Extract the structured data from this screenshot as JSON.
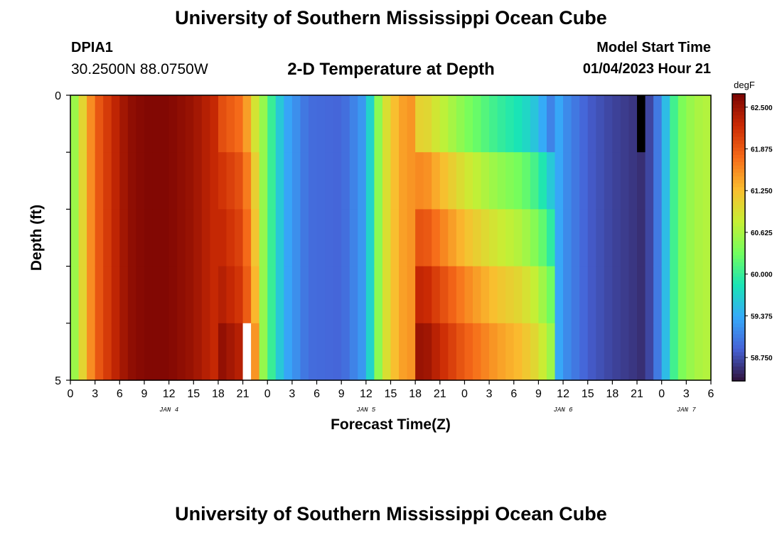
{
  "header": {
    "title": "University of Southern Mississippi Ocean Cube",
    "station_id": "DPIA1",
    "station_coords": "30.2500N  88.0750W",
    "chart_title": "2-D Temperature at Depth",
    "model_start_label": "Model Start Time",
    "model_start_value": "01/04/2023 Hour 21"
  },
  "footer": {
    "title": "University of Southern Mississippi Ocean Cube"
  },
  "chart_data": {
    "type": "heatmap",
    "xlabel": "Forecast Time(Z)",
    "ylabel": "Depth (ft)",
    "ylim": [
      0,
      5
    ],
    "y_tick_labels": [
      "0",
      "5"
    ],
    "x_tick_labels": [
      "0",
      "3",
      "6",
      "9",
      "12",
      "15",
      "18",
      "21",
      "0",
      "3",
      "6",
      "9",
      "12",
      "15",
      "18",
      "21",
      "0",
      "3",
      "6",
      "9",
      "12",
      "15",
      "18",
      "21",
      "0",
      "3",
      "6"
    ],
    "date_labels": [
      {
        "label": "JAN 4",
        "hour_index": 12
      },
      {
        "label": "JAN 5",
        "hour_index": 36
      },
      {
        "label": "JAN 6",
        "hour_index": 60
      },
      {
        "label": "JAN 7",
        "hour_index": 75
      }
    ],
    "colorbar": {
      "unit": "degF",
      "min": 58.4,
      "max": 62.7,
      "ticks": [
        "62.500",
        "61.875",
        "61.250",
        "60.625",
        "60.000",
        "59.375",
        "58.750"
      ],
      "tick_values": [
        62.5,
        61.875,
        61.25,
        60.625,
        60.0,
        59.375,
        58.75
      ],
      "colors": [
        "#30123b",
        "#4662d7",
        "#36aaf9",
        "#1ae4b6",
        "#72fe5e",
        "#c7ef34",
        "#fabd2f",
        "#f66b19",
        "#ca2a04",
        "#7a0403"
      ]
    },
    "x_hours": 78,
    "depth_rows": 5,
    "time_keyframes": [
      {
        "h": 0,
        "t": 60.3
      },
      {
        "h": 1,
        "t": 60.8
      },
      {
        "h": 2,
        "t": 61.3
      },
      {
        "h": 3,
        "t": 61.8
      },
      {
        "h": 5,
        "t": 62.2
      },
      {
        "h": 7,
        "t": 62.55
      },
      {
        "h": 9,
        "t": 62.65
      },
      {
        "h": 12,
        "t": 62.65
      },
      {
        "h": 15,
        "t": 62.5
      },
      {
        "h": 18,
        "t": 62.2
      },
      {
        "h": 21,
        "t": 61.9
      },
      {
        "h": 22,
        "t": 61.4
      },
      {
        "h": 24,
        "t": 60.2
      },
      {
        "h": 26,
        "t": 59.4
      },
      {
        "h": 29,
        "t": 58.95
      },
      {
        "h": 33,
        "t": 58.9
      },
      {
        "h": 36,
        "t": 59.3
      },
      {
        "h": 37,
        "t": 60.1
      },
      {
        "h": 38,
        "t": 60.8
      },
      {
        "h": 40,
        "t": 61.4
      },
      {
        "h": 43,
        "t": 61.6
      },
      {
        "h": 45,
        "t": 61.3
      },
      {
        "h": 48,
        "t": 60.9
      },
      {
        "h": 52,
        "t": 60.5
      },
      {
        "h": 55,
        "t": 60.3
      },
      {
        "h": 57,
        "t": 60.0
      },
      {
        "h": 60,
        "t": 59.2
      },
      {
        "h": 63,
        "t": 58.85
      },
      {
        "h": 66,
        "t": 58.7
      },
      {
        "h": 69,
        "t": 58.6
      },
      {
        "h": 70,
        "t": 58.55
      },
      {
        "h": 72,
        "t": 59.2
      },
      {
        "h": 73,
        "t": 59.8
      },
      {
        "h": 74,
        "t": 60.3
      },
      {
        "h": 76,
        "t": 60.6
      },
      {
        "h": 78,
        "t": 60.7
      }
    ],
    "depth_offsets": [
      {
        "from_h": 42,
        "to_h": 58,
        "offsets": [
          -0.5,
          0.0,
          0.35,
          0.7,
          0.95
        ]
      },
      {
        "from_h": 18,
        "to_h": 22,
        "offsets": [
          -0.2,
          0.0,
          0.1,
          0.2,
          0.4
        ]
      }
    ],
    "special_cells": [
      {
        "h": 21,
        "row": 4,
        "color": "#ffffff"
      },
      {
        "h": 69,
        "row": 0,
        "color": "#000000"
      }
    ]
  }
}
